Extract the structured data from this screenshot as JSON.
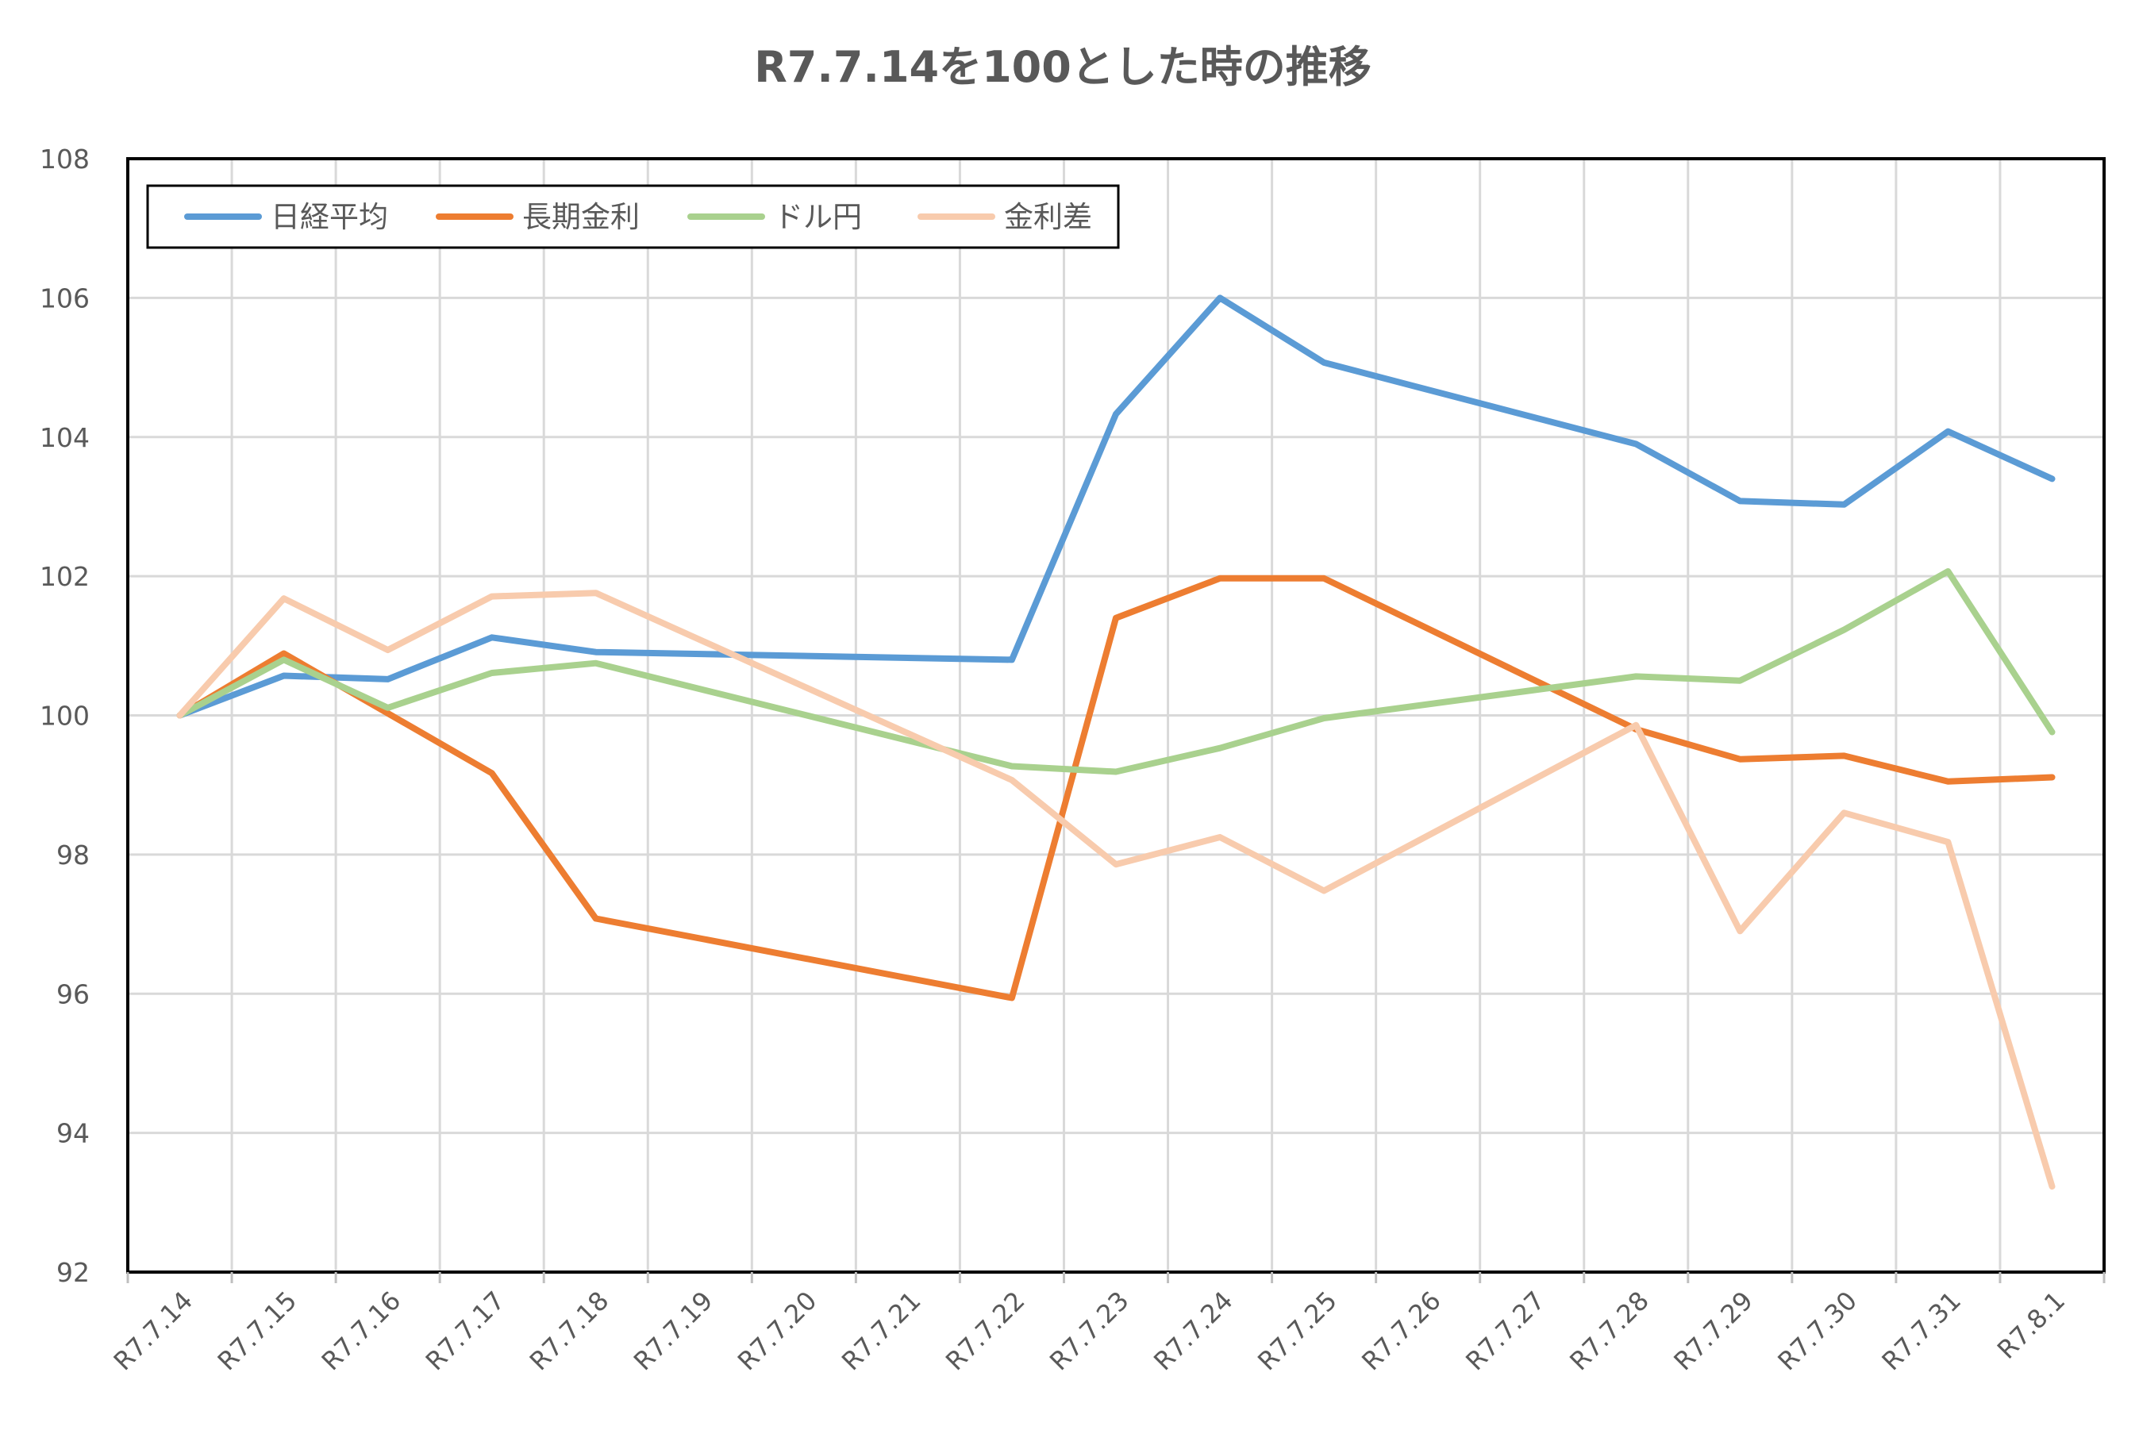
{
  "chart_data": {
    "type": "line",
    "title": "R7.7.14を100とした時の推移",
    "ylim": [
      92,
      108
    ],
    "yticks": [
      92,
      94,
      96,
      98,
      100,
      102,
      104,
      106,
      108
    ],
    "grid": true,
    "legend_position": "top-left",
    "categories": [
      "R7.7.14",
      "R7.7.15",
      "R7.7.16",
      "R7.7.17",
      "R7.7.18",
      "R7.7.19",
      "R7.7.20",
      "R7.7.21",
      "R7.7.22",
      "R7.7.23",
      "R7.7.24",
      "R7.7.25",
      "R7.7.26",
      "R7.7.27",
      "R7.7.28",
      "R7.7.29",
      "R7.7.30",
      "R7.7.31",
      "R7.8.1"
    ],
    "series": [
      {
        "name": "日経平均",
        "color": "#5B9BD5",
        "values": [
          100,
          100.57,
          100.52,
          101.12,
          100.91,
          null,
          null,
          null,
          100.8,
          104.33,
          106.0,
          105.07,
          null,
          null,
          103.9,
          103.08,
          103.03,
          104.08,
          103.4
        ]
      },
      {
        "name": "長期金利",
        "color": "#ED7D31",
        "values": [
          100,
          100.89,
          null,
          99.17,
          97.08,
          null,
          null,
          null,
          95.94,
          101.4,
          101.97,
          101.97,
          null,
          null,
          99.8,
          99.37,
          99.42,
          99.05,
          99.11
        ]
      },
      {
        "name": "ドル円",
        "color": "#A9D18E",
        "values": [
          100,
          100.8,
          100.11,
          100.61,
          100.75,
          null,
          null,
          null,
          99.27,
          99.19,
          99.53,
          99.96,
          null,
          null,
          100.56,
          100.5,
          101.23,
          102.07,
          99.76
        ]
      },
      {
        "name": "金利差",
        "color": "#F8CBAD",
        "values": [
          100,
          101.68,
          100.94,
          101.71,
          101.76,
          null,
          null,
          null,
          99.07,
          97.86,
          98.25,
          97.48,
          null,
          null,
          99.86,
          96.9,
          98.6,
          98.18,
          93.23
        ]
      }
    ]
  }
}
